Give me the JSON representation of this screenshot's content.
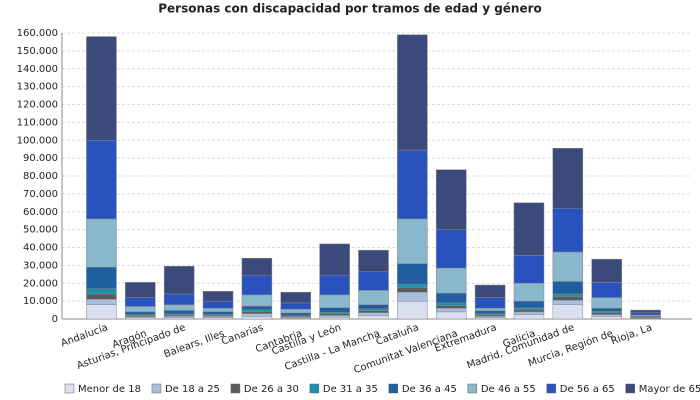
{
  "chart_data": {
    "type": "stacked_bar",
    "title": "Personas con discapacidad por tramos de edad y género",
    "categories": [
      "Andalucía",
      "Aragón",
      "Asturias, Principado de",
      "Balears, Illes",
      "Canarias",
      "Cantabria",
      "Castilla y León",
      "Castilla - La Mancha",
      "Cataluña",
      "Comunitat Valenciana",
      "Extremadura",
      "Galicia",
      "Madrid, Comunidad de",
      "Murcia, Región de",
      "Rioja, La"
    ],
    "series": [
      {
        "name": "Menor de 18",
        "color": "#d9dff0",
        "values": [
          8000,
          700,
          700,
          800,
          1500,
          500,
          1000,
          2000,
          10000,
          4000,
          800,
          2500,
          8000,
          1500,
          300
        ]
      },
      {
        "name": "De 18 a 25",
        "color": "#a9bfdf",
        "values": [
          3000,
          700,
          800,
          700,
          1500,
          500,
          1000,
          1500,
          5000,
          2000,
          800,
          1500,
          2500,
          1000,
          300
        ]
      },
      {
        "name": "De 26 a 30",
        "color": "#5c5c5c",
        "values": [
          3000,
          600,
          700,
          600,
          1200,
          500,
          1000,
          1200,
          2500,
          1500,
          700,
          1200,
          2000,
          1000,
          200
        ]
      },
      {
        "name": "De 31 a 35",
        "color": "#1a8fb0",
        "values": [
          3000,
          500,
          600,
          500,
          1000,
          400,
          800,
          1000,
          2000,
          1500,
          600,
          1000,
          1500,
          800,
          200
        ]
      },
      {
        "name": "De 36 a 45",
        "color": "#1f5f9f",
        "values": [
          12000,
          1500,
          2000,
          1500,
          2000,
          1500,
          2500,
          2300,
          11500,
          5500,
          1700,
          3800,
          7000,
          1700,
          500
        ]
      },
      {
        "name": "De 46 a 55",
        "color": "#89b8cc",
        "values": [
          27000,
          3000,
          3200,
          1900,
          6300,
          2100,
          7200,
          8000,
          25000,
          14000,
          1400,
          10000,
          16500,
          6000,
          700
        ]
      },
      {
        "name": "De 56 a 65",
        "color": "#2a52be",
        "values": [
          44000,
          5000,
          6000,
          4000,
          11000,
          3500,
          11000,
          10500,
          38500,
          21500,
          6000,
          15500,
          24500,
          8500,
          1300
        ]
      },
      {
        "name": "Mayor de 65",
        "color": "#3b4a7a",
        "values": [
          58000,
          8500,
          15500,
          5500,
          9500,
          6000,
          17500,
          12000,
          64500,
          33500,
          7000,
          29500,
          33500,
          13000,
          1500
        ]
      }
    ],
    "ylim": [
      0,
      160000
    ],
    "yticks": [
      0,
      {
        "value": 10000,
        "label": "10.000"
      },
      {
        "value": 20000,
        "label": "20.000"
      },
      {
        "value": 30000,
        "label": "30.000"
      },
      {
        "value": 40000,
        "label": "40.000"
      },
      {
        "value": 50000,
        "label": "50.000"
      },
      {
        "value": 60000,
        "label": "60.000"
      },
      {
        "value": 70000,
        "label": "70.000"
      },
      {
        "value": 80000,
        "label": "80.000"
      },
      {
        "value": 90000,
        "label": "90.000"
      },
      {
        "value": 100000,
        "label": "100.000"
      },
      {
        "value": 110000,
        "label": "110.000"
      },
      {
        "value": 120000,
        "label": "120.000"
      },
      {
        "value": 130000,
        "label": "130.000"
      },
      {
        "value": 140000,
        "label": "140.000"
      },
      {
        "value": 150000,
        "label": "150.000"
      },
      {
        "value": 160000,
        "label": "160.000"
      }
    ],
    "grid": true,
    "legend": "bottom"
  }
}
